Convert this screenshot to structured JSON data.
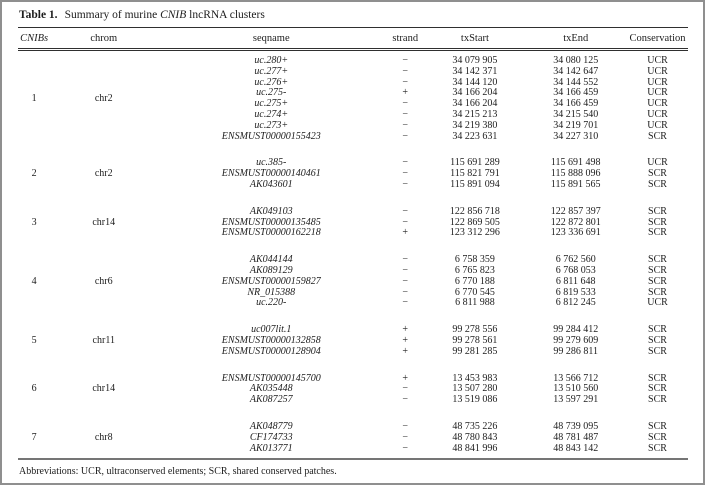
{
  "title": {
    "label": "Table 1.",
    "prefix": "Summary of murine ",
    "gene": "CNIB",
    "suffix": " lncRNA clusters"
  },
  "columns": [
    "CNIBs",
    "chrom",
    "seqname",
    "strand",
    "txStart",
    "txEnd",
    "Conservation"
  ],
  "clusters": [
    {
      "id": "1",
      "chrom": "chr2",
      "rows": [
        {
          "seqname": "uc.280+",
          "strand": "−",
          "txStart": "34 079 905",
          "txEnd": "34 080 125",
          "conservation": "UCR"
        },
        {
          "seqname": "uc.277+",
          "strand": "−",
          "txStart": "34 142 371",
          "txEnd": "34 142 647",
          "conservation": "UCR"
        },
        {
          "seqname": "uc.276+",
          "strand": "−",
          "txStart": "34 144 120",
          "txEnd": "34 144 552",
          "conservation": "UCR"
        },
        {
          "seqname": "uc.275-",
          "strand": "+",
          "txStart": "34 166 204",
          "txEnd": "34 166 459",
          "conservation": "UCR"
        },
        {
          "seqname": "uc.275+",
          "strand": "−",
          "txStart": "34 166 204",
          "txEnd": "34 166 459",
          "conservation": "UCR"
        },
        {
          "seqname": "uc.274+",
          "strand": "−",
          "txStart": "34 215 213",
          "txEnd": "34 215 540",
          "conservation": "UCR"
        },
        {
          "seqname": "uc.273+",
          "strand": "−",
          "txStart": "34 219 380",
          "txEnd": "34 219 701",
          "conservation": "UCR"
        },
        {
          "seqname": "ENSMUST00000155423",
          "strand": "−",
          "txStart": "34 223 631",
          "txEnd": "34 227 310",
          "conservation": "SCR"
        }
      ]
    },
    {
      "id": "2",
      "chrom": "chr2",
      "rows": [
        {
          "seqname": "uc.385-",
          "strand": "−",
          "txStart": "115 691 289",
          "txEnd": "115 691 498",
          "conservation": "UCR"
        },
        {
          "seqname": "ENSMUST00000140461",
          "strand": "−",
          "txStart": "115 821 791",
          "txEnd": "115 888 096",
          "conservation": "SCR"
        },
        {
          "seqname": "AK043601",
          "strand": "−",
          "txStart": "115 891 094",
          "txEnd": "115 891 565",
          "conservation": "SCR"
        }
      ]
    },
    {
      "id": "3",
      "chrom": "chr14",
      "rows": [
        {
          "seqname": "AK049103",
          "strand": "−",
          "txStart": "122 856 718",
          "txEnd": "122 857 397",
          "conservation": "SCR"
        },
        {
          "seqname": "ENSMUST00000135485",
          "strand": "−",
          "txStart": "122 869 505",
          "txEnd": "122 872 801",
          "conservation": "SCR"
        },
        {
          "seqname": "ENSMUST00000162218",
          "strand": "+",
          "txStart": "123 312 296",
          "txEnd": "123 336 691",
          "conservation": "SCR"
        }
      ]
    },
    {
      "id": "4",
      "chrom": "chr6",
      "rows": [
        {
          "seqname": "AK044144",
          "strand": "−",
          "txStart": "6 758 359",
          "txEnd": "6 762 560",
          "conservation": "SCR"
        },
        {
          "seqname": "AK089129",
          "strand": "−",
          "txStart": "6 765 823",
          "txEnd": "6 768 053",
          "conservation": "SCR"
        },
        {
          "seqname": "ENSMUST00000159827",
          "strand": "−",
          "txStart": "6 770 188",
          "txEnd": "6 811 648",
          "conservation": "SCR"
        },
        {
          "seqname": "NR_015388",
          "strand": "−",
          "txStart": "6 770 545",
          "txEnd": "6 819 533",
          "conservation": "SCR"
        },
        {
          "seqname": "uc.220-",
          "strand": "−",
          "txStart": "6 811 988",
          "txEnd": "6 812 245",
          "conservation": "UCR"
        }
      ]
    },
    {
      "id": "5",
      "chrom": "chr11",
      "rows": [
        {
          "seqname": "uc007lit.1",
          "strand": "+",
          "txStart": "99 278 556",
          "txEnd": "99 284 412",
          "conservation": "SCR"
        },
        {
          "seqname": "ENSMUST00000132858",
          "strand": "+",
          "txStart": "99 278 561",
          "txEnd": "99 279 609",
          "conservation": "SCR"
        },
        {
          "seqname": "ENSMUST00000128904",
          "strand": "+",
          "txStart": "99 281 285",
          "txEnd": "99 286 811",
          "conservation": "SCR"
        }
      ]
    },
    {
      "id": "6",
      "chrom": "chr14",
      "rows": [
        {
          "seqname": "ENSMUST00000145700",
          "strand": "+",
          "txStart": "13 453 983",
          "txEnd": "13 566 712",
          "conservation": "SCR"
        },
        {
          "seqname": "AK035448",
          "strand": "−",
          "txStart": "13 507 280",
          "txEnd": "13 510 560",
          "conservation": "SCR"
        },
        {
          "seqname": "AK087257",
          "strand": "−",
          "txStart": "13 519 086",
          "txEnd": "13 597 291",
          "conservation": "SCR"
        }
      ]
    },
    {
      "id": "7",
      "chrom": "chr8",
      "rows": [
        {
          "seqname": "AK048779",
          "strand": "−",
          "txStart": "48 735 226",
          "txEnd": "48 739 095",
          "conservation": "SCR"
        },
        {
          "seqname": "CF174733",
          "strand": "−",
          "txStart": "48 780 843",
          "txEnd": "48 781 487",
          "conservation": "SCR"
        },
        {
          "seqname": "AK013771",
          "strand": "−",
          "txStart": "48 841 996",
          "txEnd": "48 843 142",
          "conservation": "SCR"
        }
      ]
    }
  ],
  "footnote": "Abbreviations: UCR, ultraconserved elements; SCR, shared conserved patches."
}
